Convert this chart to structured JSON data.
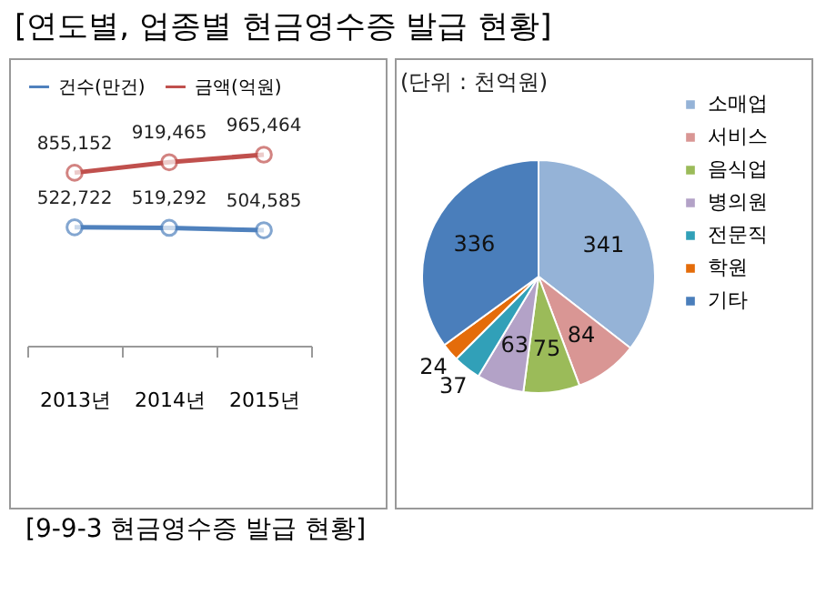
{
  "chart_data": [
    {
      "type": "line",
      "title": "[연도별, 업종별 현금영수증 발급 현황]",
      "annotations": [
        "[9-9-3 현금영수증 발급 현황]"
      ],
      "categories": [
        "2013년",
        "2014년",
        "2015년"
      ],
      "series": [
        {
          "name": "건수(만건)",
          "color": "#4f81bd",
          "values": [
            522722,
            519292,
            504585
          ],
          "value_labels": [
            "522,722",
            "519,292",
            "504,585"
          ]
        },
        {
          "name": "금액(억원)",
          "color": "#c0504d",
          "values": [
            855152,
            919465,
            965464
          ],
          "value_labels": [
            "855,152",
            "919,465",
            "965,464"
          ]
        }
      ],
      "legend": "top left",
      "marker": "circle"
    },
    {
      "type": "pie",
      "annotations": [
        "(단위 : 천억원)"
      ],
      "categories": [
        "소매업",
        "서비스",
        "음식업",
        "병의원",
        "전문직",
        "학원",
        "기타"
      ],
      "values": [
        341,
        84,
        75,
        63,
        37,
        24,
        336
      ],
      "colors": [
        "#95b3d7",
        "#d99694",
        "#9bbb59",
        "#b3a2c7",
        "#31a0b8",
        "#e46c0a",
        "#4a7ebb"
      ],
      "data_labels": true,
      "legend": "right"
    }
  ]
}
